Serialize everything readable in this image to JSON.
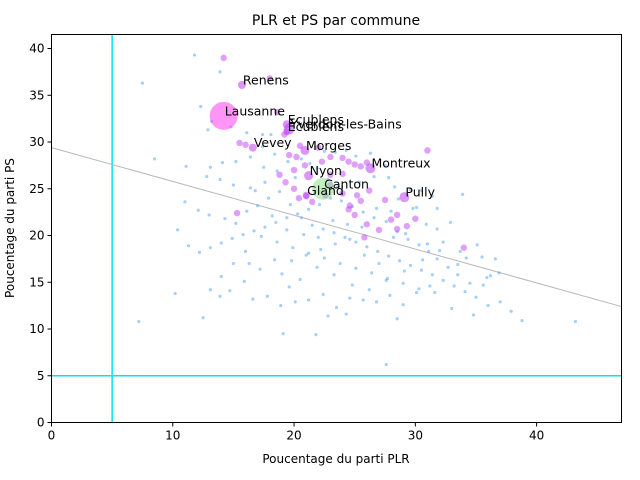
{
  "chart_data": {
    "type": "scatter",
    "title": "PLR et PS par commune",
    "xlabel": "Poucentage du parti PLR",
    "ylabel": "Poucentage du parti PS",
    "xlim": [
      0,
      47
    ],
    "ylim": [
      0,
      41.5
    ],
    "xticks": [
      "0",
      "10",
      "20",
      "30",
      "40"
    ],
    "yticks": [
      "0",
      "5",
      "10",
      "15",
      "20",
      "25",
      "30",
      "35",
      "40"
    ],
    "grid": false,
    "colors": {
      "small_points": "#5aaaf5",
      "large_points": "#c040f5",
      "lausanne": "#ff40f0",
      "canton": "#90e090",
      "canton_label": "#108010",
      "threshold_lines": "#00e5ee",
      "trend_line": "#b8b8b8"
    },
    "threshold_lines": {
      "x": 5,
      "y": 5
    },
    "trend_line": {
      "x0": 0,
      "y0": 29.4,
      "x1": 47,
      "y1": 12.4
    },
    "labeled_points": [
      {
        "label": "Renens",
        "x": 15.7,
        "y": 36.1,
        "size": 8,
        "color": "#c040f5"
      },
      {
        "label": "Lausanne",
        "x": 14.2,
        "y": 32.8,
        "size": 28,
        "color": "#ff40f0"
      },
      {
        "label": "Ecublens",
        "x": 19.4,
        "y": 31.9,
        "size": 8,
        "color": "#c040f5"
      },
      {
        "label": "Écublens",
        "x": 19.4,
        "y": 31.1,
        "size": 7,
        "color": "#c040f5"
      },
      {
        "label": "Yverdon-les-Bains",
        "x": 19.6,
        "y": 31.4,
        "size": 11,
        "color": "#c040f5"
      },
      {
        "label": "Vevey",
        "x": 16.6,
        "y": 29.4,
        "size": 8,
        "color": "#c040f5"
      },
      {
        "label": "Morges",
        "x": 20.9,
        "y": 29.1,
        "size": 9,
        "color": "#c040f5"
      },
      {
        "label": "Montreux",
        "x": 26.3,
        "y": 27.2,
        "size": 10,
        "color": "#c040f5"
      },
      {
        "label": "Nyon",
        "x": 21.2,
        "y": 26.4,
        "size": 9,
        "color": "#c040f5"
      },
      {
        "label": "Canton",
        "x": 22.4,
        "y": 25.0,
        "size": 22,
        "color": "#90e090"
      },
      {
        "label": "Gland",
        "x": 21.0,
        "y": 24.3,
        "size": 7,
        "color": "#c040f5"
      },
      {
        "label": "Pully",
        "x": 29.1,
        "y": 24.1,
        "size": 10,
        "color": "#c040f5"
      }
    ],
    "medium_points": [
      [
        14.2,
        39.0
      ],
      [
        18.0,
        36.8
      ],
      [
        15.5,
        29.9
      ],
      [
        16.0,
        29.7
      ],
      [
        18.6,
        33.2
      ],
      [
        19.2,
        30.8
      ],
      [
        19.6,
        28.6
      ],
      [
        20.2,
        28.4
      ],
      [
        20.5,
        29.6
      ],
      [
        20.9,
        27.5
      ],
      [
        22.0,
        29.4
      ],
      [
        22.3,
        27.9
      ],
      [
        23.0,
        28.4
      ],
      [
        24.0,
        28.3
      ],
      [
        24.5,
        27.9
      ],
      [
        25.0,
        27.6
      ],
      [
        25.5,
        27.4
      ],
      [
        26.0,
        27.8
      ],
      [
        24.0,
        26.6
      ],
      [
        23.0,
        26.5
      ],
      [
        18.8,
        26.5
      ],
      [
        19.3,
        25.7
      ],
      [
        20.0,
        25.0
      ],
      [
        20.4,
        24.0
      ],
      [
        21.5,
        23.6
      ],
      [
        24.0,
        24.5
      ],
      [
        24.6,
        23.2
      ],
      [
        25.0,
        22.2
      ],
      [
        25.5,
        23.7
      ],
      [
        27.5,
        23.8
      ],
      [
        26.0,
        21.2
      ],
      [
        27.0,
        20.6
      ],
      [
        28.0,
        21.7
      ],
      [
        28.5,
        22.2
      ],
      [
        29.3,
        21.0
      ],
      [
        30.0,
        21.8
      ],
      [
        31.0,
        29.1
      ],
      [
        15.3,
        22.4
      ],
      [
        34.0,
        18.7
      ],
      [
        23.0,
        25.4
      ],
      [
        21.0,
        24.2
      ],
      [
        20.0,
        27.0
      ],
      [
        22.6,
        24.3
      ],
      [
        25.2,
        24.3
      ],
      [
        26.2,
        24.8
      ],
      [
        28.5,
        20.7
      ],
      [
        24.5,
        22.8
      ],
      [
        25.8,
        19.8
      ]
    ],
    "small_points": [
      [
        11.8,
        39.3
      ],
      [
        7.5,
        36.3
      ],
      [
        13.9,
        37.5
      ],
      [
        12.3,
        33.8
      ],
      [
        13.2,
        32.2
      ],
      [
        12.9,
        31.3
      ],
      [
        14.8,
        31.6
      ],
      [
        16.1,
        31.0
      ],
      [
        17.4,
        30.8
      ],
      [
        18.1,
        30.8
      ],
      [
        18.4,
        28.7
      ],
      [
        17.4,
        29.5
      ],
      [
        16.4,
        28.4
      ],
      [
        15.2,
        27.9
      ],
      [
        14.1,
        27.8
      ],
      [
        13.1,
        27.3
      ],
      [
        11.1,
        27.4
      ],
      [
        8.5,
        28.2
      ],
      [
        12.8,
        26.3
      ],
      [
        13.9,
        26.0
      ],
      [
        15.0,
        25.4
      ],
      [
        16.4,
        25.1
      ],
      [
        17.6,
        25.7
      ],
      [
        18.6,
        26.9
      ],
      [
        19.5,
        27.9
      ],
      [
        20.6,
        28.2
      ],
      [
        21.3,
        27.7
      ],
      [
        21.9,
        27.2
      ],
      [
        22.5,
        29.0
      ],
      [
        23.4,
        28.9
      ],
      [
        24.3,
        29.1
      ],
      [
        25.1,
        28.5
      ],
      [
        26.3,
        28.8
      ],
      [
        27.5,
        27.5
      ],
      [
        28.3,
        25.2
      ],
      [
        29.6,
        24.9
      ],
      [
        30.5,
        24.8
      ],
      [
        31.4,
        24.2
      ],
      [
        33.9,
        24.4
      ],
      [
        30.1,
        23.0
      ],
      [
        30.9,
        21.2
      ],
      [
        31.8,
        20.7
      ],
      [
        32.3,
        19.3
      ],
      [
        33.7,
        18.3
      ],
      [
        35.5,
        17.7
      ],
      [
        36.6,
        17.5
      ],
      [
        36.9,
        16.0
      ],
      [
        35.9,
        15.5
      ],
      [
        35.6,
        14.7
      ],
      [
        34.5,
        14.9
      ],
      [
        33.5,
        15.8
      ],
      [
        32.7,
        16.6
      ],
      [
        31.8,
        17.5
      ],
      [
        31.1,
        18.3
      ],
      [
        30.3,
        19.0
      ],
      [
        29.4,
        19.6
      ],
      [
        28.5,
        20.4
      ],
      [
        27.6,
        21.5
      ],
      [
        26.6,
        21.9
      ],
      [
        25.7,
        22.5
      ],
      [
        24.8,
        23.1
      ],
      [
        23.9,
        23.7
      ],
      [
        23.0,
        24.0
      ],
      [
        22.1,
        23.3
      ],
      [
        21.2,
        22.8
      ],
      [
        20.3,
        22.3
      ],
      [
        19.4,
        21.9
      ],
      [
        18.5,
        21.4
      ],
      [
        17.6,
        20.9
      ],
      [
        16.7,
        20.5
      ],
      [
        15.8,
        20.1
      ],
      [
        14.9,
        19.7
      ],
      [
        14.0,
        19.2
      ],
      [
        13.1,
        18.7
      ],
      [
        12.2,
        18.2
      ],
      [
        11.3,
        18.9
      ],
      [
        10.4,
        20.6
      ],
      [
        11.0,
        23.6
      ],
      [
        12.1,
        22.7
      ],
      [
        13.0,
        22.2
      ],
      [
        14.3,
        21.8
      ],
      [
        15.2,
        21.3
      ],
      [
        16.1,
        22.6
      ],
      [
        17.0,
        23.2
      ],
      [
        17.9,
        24.0
      ],
      [
        18.8,
        24.7
      ],
      [
        19.7,
        23.3
      ],
      [
        20.6,
        21.9
      ],
      [
        21.5,
        21.1
      ],
      [
        22.4,
        20.7
      ],
      [
        23.3,
        20.3
      ],
      [
        24.2,
        19.8
      ],
      [
        25.1,
        19.3
      ],
      [
        26.0,
        18.8
      ],
      [
        26.9,
        18.3
      ],
      [
        27.8,
        17.8
      ],
      [
        28.7,
        17.3
      ],
      [
        29.6,
        16.8
      ],
      [
        30.5,
        16.3
      ],
      [
        31.4,
        15.8
      ],
      [
        32.3,
        15.2
      ],
      [
        33.2,
        14.6
      ],
      [
        34.1,
        14.0
      ],
      [
        35.0,
        13.4
      ],
      [
        36.0,
        12.5
      ],
      [
        37.0,
        12.9
      ],
      [
        37.9,
        11.9
      ],
      [
        38.8,
        10.9
      ],
      [
        43.2,
        10.8
      ],
      [
        33.0,
        12.2
      ],
      [
        31.6,
        13.9
      ],
      [
        30.3,
        14.3
      ],
      [
        29.0,
        14.9
      ],
      [
        27.7,
        15.4
      ],
      [
        26.4,
        16.0
      ],
      [
        25.1,
        16.5
      ],
      [
        23.8,
        17.0
      ],
      [
        22.5,
        17.6
      ],
      [
        21.2,
        18.1
      ],
      [
        19.9,
        18.7
      ],
      [
        18.6,
        19.3
      ],
      [
        17.3,
        19.9
      ],
      [
        16.0,
        18.3
      ],
      [
        15.0,
        17.0
      ],
      [
        14.0,
        15.6
      ],
      [
        13.1,
        14.2
      ],
      [
        13.9,
        13.5
      ],
      [
        12.5,
        11.2
      ],
      [
        10.2,
        13.8
      ],
      [
        7.2,
        10.8
      ],
      [
        16.6,
        13.2
      ],
      [
        17.8,
        13.5
      ],
      [
        18.9,
        12.5
      ],
      [
        20.1,
        12.9
      ],
      [
        21.2,
        13.1
      ],
      [
        22.4,
        13.7
      ],
      [
        23.5,
        12.3
      ],
      [
        24.6,
        13.3
      ],
      [
        25.7,
        13.1
      ],
      [
        26.8,
        12.9
      ],
      [
        27.9,
        13.6
      ],
      [
        29.0,
        12.6
      ],
      [
        30.1,
        13.9
      ],
      [
        31.2,
        14.6
      ],
      [
        19.0,
        15.9
      ],
      [
        20.5,
        15.3
      ],
      [
        21.9,
        16.6
      ],
      [
        23.3,
        15.8
      ],
      [
        24.8,
        14.7
      ],
      [
        26.2,
        14.2
      ],
      [
        27.6,
        15.2
      ],
      [
        29.1,
        16.2
      ],
      [
        19.8,
        17.3
      ],
      [
        21.0,
        17.9
      ],
      [
        22.2,
        18.5
      ],
      [
        23.4,
        19.1
      ],
      [
        24.6,
        19.6
      ],
      [
        25.8,
        17.9
      ],
      [
        27.0,
        17.0
      ],
      [
        28.2,
        19.8
      ],
      [
        20.8,
        20.1
      ],
      [
        22.0,
        19.8
      ],
      [
        23.2,
        21.6
      ],
      [
        24.4,
        21.2
      ],
      [
        25.6,
        20.9
      ],
      [
        26.8,
        22.9
      ],
      [
        28.0,
        22.6
      ],
      [
        29.2,
        20.2
      ],
      [
        18.2,
        22.1
      ],
      [
        19.4,
        20.6
      ],
      [
        16.8,
        24.8
      ],
      [
        17.5,
        27.3
      ],
      [
        20.1,
        26.2
      ],
      [
        22.8,
        26.0
      ],
      [
        23.6,
        25.2
      ],
      [
        25.4,
        25.7
      ],
      [
        26.6,
        26.3
      ],
      [
        27.8,
        26.2
      ],
      [
        28.6,
        23.9
      ],
      [
        29.8,
        22.9
      ],
      [
        31.0,
        19.1
      ],
      [
        30.6,
        17.4
      ],
      [
        32.0,
        18.4
      ],
      [
        33.5,
        16.9
      ],
      [
        34.2,
        17.6
      ],
      [
        35.1,
        19.0
      ],
      [
        32.9,
        21.4
      ],
      [
        31.8,
        22.9
      ],
      [
        17.2,
        16.4
      ],
      [
        18.4,
        17.4
      ],
      [
        19.1,
        9.5
      ],
      [
        21.8,
        9.4
      ],
      [
        27.6,
        6.2
      ],
      [
        19.6,
        14.5
      ],
      [
        22.8,
        11.4
      ],
      [
        24.3,
        11.6
      ],
      [
        28.5,
        11.1
      ],
      [
        34.8,
        11.5
      ],
      [
        36.2,
        15.7
      ],
      [
        15.9,
        15.1
      ],
      [
        14.7,
        14.1
      ],
      [
        16.3,
        17.0
      ]
    ]
  }
}
